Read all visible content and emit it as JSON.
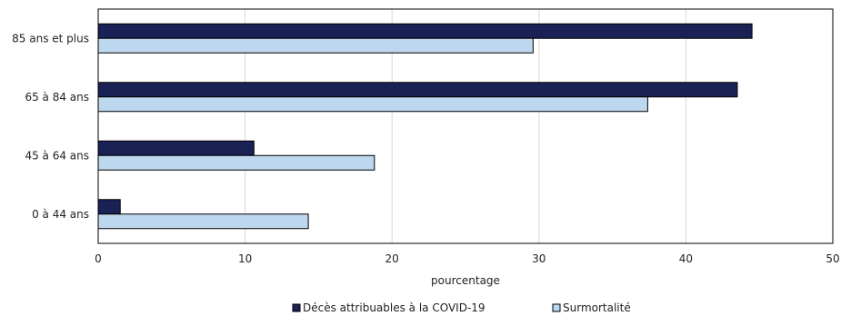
{
  "chart_data": {
    "type": "bar",
    "orientation": "horizontal",
    "title": "",
    "xlabel": "pourcentage",
    "ylabel": "",
    "categories": [
      "85 ans et plus",
      "65 à 84 ans",
      "45 à 64 ans",
      "0 à 44 ans"
    ],
    "series": [
      {
        "name": "Décès attribuables à la COVID-19",
        "color": "#1a2155",
        "values": [
          44.5,
          43.5,
          10.6,
          1.5
        ]
      },
      {
        "name": "Surmortalité",
        "color": "#bdd7ee",
        "values": [
          29.6,
          37.4,
          18.8,
          14.3
        ]
      }
    ],
    "xlim": [
      0,
      50
    ],
    "xticks": [
      "0",
      "10",
      "20",
      "30",
      "40",
      "50"
    ],
    "grid": true,
    "legend_position": "bottom"
  }
}
